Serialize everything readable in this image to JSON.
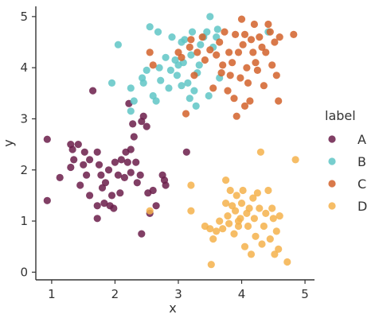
{
  "chart_data": {
    "type": "scatter",
    "xlabel": "x",
    "ylabel": "y",
    "xlim": [
      0.75,
      5.15
    ],
    "ylim": [
      -0.15,
      5.2
    ],
    "x_ticks": [
      "1",
      "2",
      "3",
      "4",
      "5"
    ],
    "y_ticks": [
      "0",
      "1",
      "2",
      "3",
      "4",
      "5"
    ],
    "grid": false,
    "legend": {
      "title": "label",
      "placement": "right"
    },
    "series": [
      {
        "name": "A",
        "color": "#6b1d4a",
        "points": [
          [
            0.93,
            2.6
          ],
          [
            0.93,
            1.4
          ],
          [
            1.13,
            1.85
          ],
          [
            1.3,
            2.5
          ],
          [
            1.33,
            2.4
          ],
          [
            1.35,
            2.2
          ],
          [
            1.3,
            2.05
          ],
          [
            1.42,
            2.5
          ],
          [
            1.5,
            2.1
          ],
          [
            1.45,
            1.7
          ],
          [
            1.55,
            1.9
          ],
          [
            1.6,
            2.2
          ],
          [
            1.52,
            2.35
          ],
          [
            1.65,
            3.55
          ],
          [
            1.72,
            2.35
          ],
          [
            1.75,
            2.1
          ],
          [
            1.78,
            1.9
          ],
          [
            1.8,
            1.65
          ],
          [
            1.85,
            1.75
          ],
          [
            1.83,
            1.35
          ],
          [
            1.92,
            1.3
          ],
          [
            1.95,
            1.5
          ],
          [
            1.9,
            2.0
          ],
          [
            2.0,
            2.15
          ],
          [
            2.05,
            1.9
          ],
          [
            2.1,
            2.2
          ],
          [
            2.15,
            1.85
          ],
          [
            2.17,
            2.35
          ],
          [
            2.2,
            2.15
          ],
          [
            2.22,
            3.3
          ],
          [
            2.25,
            2.4
          ],
          [
            2.28,
            2.9
          ],
          [
            2.3,
            2.65
          ],
          [
            2.33,
            2.15
          ],
          [
            2.35,
            1.75
          ],
          [
            2.4,
            1.9
          ],
          [
            2.42,
            2.95
          ],
          [
            2.45,
            3.05
          ],
          [
            2.5,
            2.85
          ],
          [
            2.42,
            0.75
          ],
          [
            2.52,
            1.55
          ],
          [
            2.55,
            1.15
          ],
          [
            2.6,
            1.6
          ],
          [
            2.65,
            1.3
          ],
          [
            2.75,
            1.9
          ],
          [
            2.78,
            1.8
          ],
          [
            2.8,
            1.7
          ],
          [
            3.13,
            2.35
          ],
          [
            1.72,
            1.3
          ],
          [
            1.98,
            1.25
          ],
          [
            2.25,
            1.95
          ],
          [
            1.72,
            1.05
          ],
          [
            1.6,
            1.5
          ],
          [
            2.08,
            1.55
          ]
        ]
      },
      {
        "name": "B",
        "color": "#5fc6c6",
        "points": [
          [
            1.95,
            3.7
          ],
          [
            2.05,
            4.45
          ],
          [
            2.25,
            3.6
          ],
          [
            2.25,
            3.15
          ],
          [
            2.3,
            3.35
          ],
          [
            2.43,
            3.8
          ],
          [
            2.45,
            3.7
          ],
          [
            2.5,
            3.95
          ],
          [
            2.55,
            4.8
          ],
          [
            2.6,
            3.45
          ],
          [
            2.65,
            3.35
          ],
          [
            2.68,
            4.7
          ],
          [
            2.7,
            4.0
          ],
          [
            2.72,
            3.75
          ],
          [
            2.8,
            4.2
          ],
          [
            2.85,
            3.6
          ],
          [
            2.88,
            3.95
          ],
          [
            2.9,
            4.6
          ],
          [
            2.95,
            4.15
          ],
          [
            2.98,
            3.85
          ],
          [
            3.0,
            4.05
          ],
          [
            3.05,
            3.65
          ],
          [
            3.08,
            4.1
          ],
          [
            3.1,
            4.55
          ],
          [
            3.15,
            3.7
          ],
          [
            3.18,
            3.4
          ],
          [
            3.2,
            4.25
          ],
          [
            3.22,
            4.7
          ],
          [
            3.25,
            3.55
          ],
          [
            3.3,
            3.9
          ],
          [
            3.33,
            4.05
          ],
          [
            3.35,
            4.45
          ],
          [
            3.4,
            4.6
          ],
          [
            3.45,
            4.7
          ],
          [
            3.5,
            5.0
          ],
          [
            3.55,
            4.4
          ],
          [
            3.6,
            4.6
          ],
          [
            3.62,
            4.75
          ],
          [
            3.65,
            3.8
          ],
          [
            3.48,
            3.45
          ],
          [
            3.28,
            3.25
          ],
          [
            4.42,
            4.7
          ],
          [
            3.05,
            4.5
          ]
        ]
      },
      {
        "name": "C",
        "color": "#d2622a",
        "points": [
          [
            2.55,
            4.3
          ],
          [
            2.6,
            4.05
          ],
          [
            3.0,
            4.3
          ],
          [
            3.05,
            4.2
          ],
          [
            3.12,
            3.1
          ],
          [
            3.18,
            4.4
          ],
          [
            3.2,
            4.55
          ],
          [
            3.25,
            3.85
          ],
          [
            3.3,
            4.3
          ],
          [
            3.38,
            4.6
          ],
          [
            3.42,
            4.15
          ],
          [
            3.5,
            4.35
          ],
          [
            3.55,
            3.6
          ],
          [
            3.6,
            4.25
          ],
          [
            3.65,
            4.5
          ],
          [
            3.7,
            4.05
          ],
          [
            3.73,
            4.7
          ],
          [
            3.78,
            3.55
          ],
          [
            3.8,
            4.3
          ],
          [
            3.82,
            3.85
          ],
          [
            3.85,
            4.1
          ],
          [
            3.88,
            3.4
          ],
          [
            3.9,
            4.65
          ],
          [
            3.92,
            3.05
          ],
          [
            3.95,
            4.3
          ],
          [
            3.98,
            3.8
          ],
          [
            4.02,
            4.45
          ],
          [
            4.05,
            4.65
          ],
          [
            4.08,
            4.0
          ],
          [
            4.1,
            3.7
          ],
          [
            4.13,
            3.35
          ],
          [
            4.15,
            4.55
          ],
          [
            4.18,
            4.3
          ],
          [
            4.2,
            4.85
          ],
          [
            4.22,
            4.1
          ],
          [
            4.25,
            3.95
          ],
          [
            4.28,
            4.6
          ],
          [
            4.32,
            4.4
          ],
          [
            4.35,
            3.65
          ],
          [
            4.38,
            4.3
          ],
          [
            4.42,
            4.85
          ],
          [
            4.45,
            4.7
          ],
          [
            4.48,
            4.05
          ],
          [
            4.52,
            4.5
          ],
          [
            4.55,
            3.85
          ],
          [
            4.58,
            3.35
          ],
          [
            4.6,
            4.6
          ],
          [
            4.82,
            4.65
          ],
          [
            4.05,
            3.25
          ],
          [
            3.68,
            3.9
          ],
          [
            4.0,
            4.95
          ]
        ]
      },
      {
        "name": "D",
        "color": "#f4b24b",
        "points": [
          [
            2.55,
            1.2
          ],
          [
            3.2,
            1.7
          ],
          [
            3.2,
            1.2
          ],
          [
            3.42,
            0.9
          ],
          [
            3.5,
            0.85
          ],
          [
            3.52,
            0.15
          ],
          [
            3.55,
            0.65
          ],
          [
            3.6,
            0.8
          ],
          [
            3.65,
            1.0
          ],
          [
            3.7,
            0.85
          ],
          [
            3.75,
            1.35
          ],
          [
            3.78,
            1.1
          ],
          [
            3.8,
            0.95
          ],
          [
            3.82,
            1.6
          ],
          [
            3.85,
            1.3
          ],
          [
            3.88,
            0.75
          ],
          [
            3.9,
            1.2
          ],
          [
            3.92,
            1.5
          ],
          [
            3.95,
            0.9
          ],
          [
            3.98,
            1.05
          ],
          [
            4.0,
            1.35
          ],
          [
            4.02,
            1.6
          ],
          [
            4.05,
            0.5
          ],
          [
            4.08,
            1.15
          ],
          [
            4.1,
            0.9
          ],
          [
            4.12,
            1.25
          ],
          [
            4.15,
            0.35
          ],
          [
            4.18,
            1.45
          ],
          [
            4.2,
            1.05
          ],
          [
            4.22,
            0.7
          ],
          [
            4.28,
            1.25
          ],
          [
            4.3,
            2.35
          ],
          [
            4.32,
            0.55
          ],
          [
            4.35,
            0.9
          ],
          [
            4.38,
            1.15
          ],
          [
            4.42,
            1.6
          ],
          [
            4.45,
            0.65
          ],
          [
            4.48,
            1.25
          ],
          [
            4.5,
            1.05
          ],
          [
            4.52,
            0.35
          ],
          [
            4.55,
            0.8
          ],
          [
            4.58,
            0.45
          ],
          [
            4.6,
            1.1
          ],
          [
            4.72,
            0.2
          ],
          [
            4.85,
            2.2
          ],
          [
            3.75,
            1.8
          ],
          [
            3.95,
            1.0
          ],
          [
            4.25,
            1.55
          ]
        ]
      }
    ]
  }
}
